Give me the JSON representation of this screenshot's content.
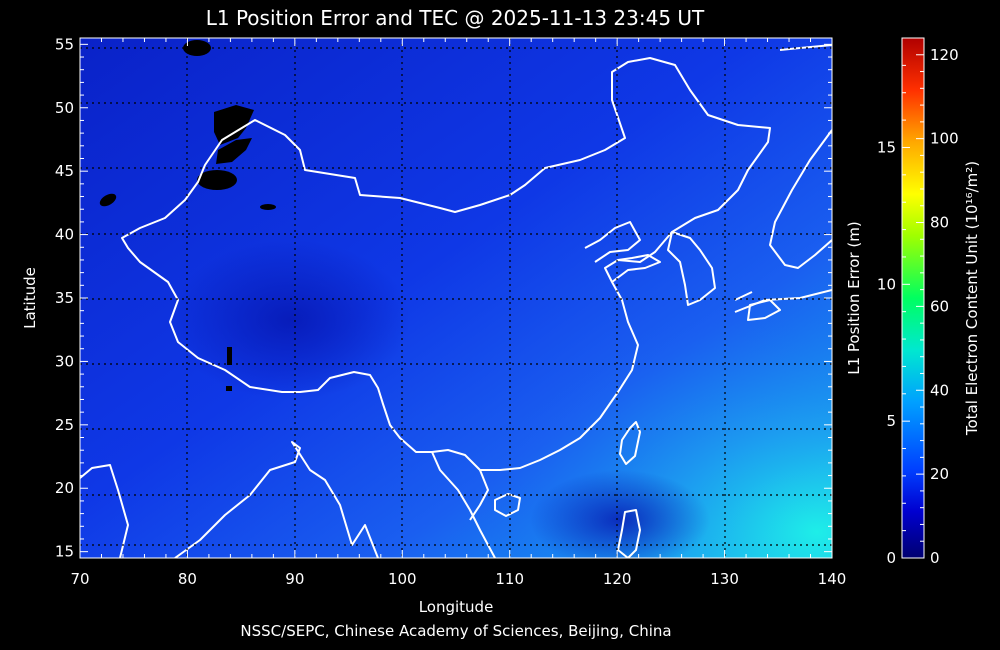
{
  "title": "L1 Position Error and TEC @ 2025-11-13 23:45 UT",
  "footer": "NSSC/SEPC, Chinese Academy of Sciences, Beijing, China",
  "map": {
    "xlabel": "Longitude",
    "ylabel": "Latitude",
    "lon_range": [
      70,
      140
    ],
    "lat_range": [
      14.5,
      55.5
    ],
    "lon_ticks": [
      70,
      80,
      90,
      100,
      110,
      120,
      130,
      140
    ],
    "lat_ticks": [
      15,
      20,
      25,
      30,
      35,
      40,
      45,
      50,
      55
    ],
    "grid": "dotted",
    "coastline_color": "#ffffff"
  },
  "colorbar": {
    "error_label": "L1 Position Error (m)",
    "error_ticks": [
      0,
      5,
      10,
      15
    ],
    "error_range": [
      0,
      19
    ],
    "tec_label": "Total Electron Content Unit (10¹⁶/m²)",
    "tec_ticks": [
      0,
      20,
      40,
      60,
      80,
      100,
      120
    ],
    "tec_range": [
      0,
      124
    ],
    "colors": [
      "#000070",
      "#0000ff",
      "#0070ff",
      "#00c8ff",
      "#00e8c0",
      "#00ff60",
      "#a0ff00",
      "#ffff00",
      "#ffb000",
      "#ff5000",
      "#ff0000",
      "#c00000"
    ]
  },
  "chart_data": {
    "type": "heatmap",
    "title": "L1 Position Error and TEC @ 2025-11-13 23:45 UT",
    "xlabel": "Longitude",
    "ylabel": "Latitude",
    "xlim": [
      70,
      140
    ],
    "ylim": [
      14.5,
      55.5
    ],
    "value_range_tec": [
      0,
      124
    ],
    "value_range_error_m": [
      0,
      19
    ],
    "tec_field_samples": [
      {
        "lon": 75,
        "lat": 50,
        "tec": 6
      },
      {
        "lon": 100,
        "lat": 40,
        "tec": 10
      },
      {
        "lon": 115,
        "lat": 30,
        "tec": 14
      },
      {
        "lon": 125,
        "lat": 25,
        "tec": 20
      },
      {
        "lon": 132,
        "lat": 30,
        "tec": 26
      },
      {
        "lon": 138,
        "lat": 16,
        "tec": 42
      }
    ]
  }
}
